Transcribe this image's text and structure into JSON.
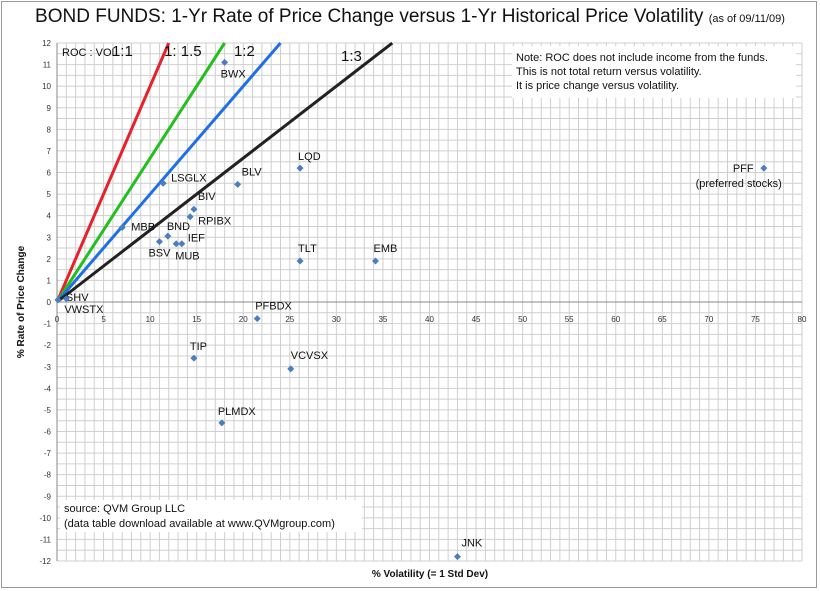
{
  "chart_data": {
    "type": "scatter",
    "title": "BOND FUNDS:  1-Yr Rate of Price Change versus 1-Yr Historical Price Volatility",
    "subtitle": "(as of 09/11/09)",
    "xlabel": "% Volatility (= 1 Std Dev)",
    "ylabel": "% Rate of Price Change",
    "xlim": [
      0,
      80
    ],
    "ylim": [
      -12,
      12
    ],
    "xticks": [
      0,
      5,
      10,
      15,
      20,
      25,
      30,
      35,
      40,
      45,
      50,
      55,
      60,
      65,
      70,
      75,
      80
    ],
    "yticks": [
      12,
      11,
      10,
      9,
      8,
      7,
      6,
      5,
      4,
      3,
      2,
      1,
      0,
      -1,
      -2,
      -3,
      -4,
      -5,
      -6,
      -7,
      -8,
      -9,
      -10,
      -11,
      -12
    ],
    "grid": true,
    "marker_color": "#4a7ebf",
    "points": [
      {
        "label": "BWX",
        "x": 18.0,
        "y": 11.1
      },
      {
        "label": "LQD",
        "x": 26.1,
        "y": 6.2
      },
      {
        "label": "BLV",
        "x": 19.4,
        "y": 5.45
      },
      {
        "label": "LSGLX",
        "x": 11.4,
        "y": 5.5
      },
      {
        "label": "BIV",
        "x": 14.7,
        "y": 4.3
      },
      {
        "label": "RPIBX",
        "x": 14.3,
        "y": 3.95
      },
      {
        "label": "MBB",
        "x": 7.0,
        "y": 3.45
      },
      {
        "label": "BND",
        "x": 11.9,
        "y": 3.05
      },
      {
        "label": "BSV",
        "x": 11.0,
        "y": 2.8
      },
      {
        "label": "IEF",
        "x": 13.4,
        "y": 2.7
      },
      {
        "label": "MUB",
        "x": 12.8,
        "y": 2.7
      },
      {
        "label": "TLT",
        "x": 26.1,
        "y": 1.9
      },
      {
        "label": "EMB",
        "x": 34.2,
        "y": 1.9
      },
      {
        "label": "SHV",
        "x": 0.1,
        "y": 0.1
      },
      {
        "label": "VWSTX",
        "x": 1.0,
        "y": 0.15
      },
      {
        "label": "PFF",
        "sublabel": "(preferred stocks)",
        "x": 75.9,
        "y": 6.2
      },
      {
        "label": "PFBDX",
        "x": 21.5,
        "y": -0.77
      },
      {
        "label": "TIP",
        "x": 14.7,
        "y": -2.6
      },
      {
        "label": "VCVSX",
        "x": 25.1,
        "y": -3.1
      },
      {
        "label": "PLMDX",
        "x": 17.7,
        "y": -5.6
      },
      {
        "label": "JNK",
        "x": 43.0,
        "y": -11.8
      }
    ],
    "reference_lines_label": "ROC : VOL",
    "reference_lines": [
      {
        "label": "1:1",
        "slope": 1,
        "color": "#e8202a"
      },
      {
        "label": "1: 1.5",
        "slope": 0.6667,
        "color": "#22c01e"
      },
      {
        "label": "1:2",
        "slope": 0.5,
        "color": "#1f6fe8"
      },
      {
        "label": "1:3",
        "slope": 0.3333,
        "color": "#222222"
      }
    ],
    "annotations": {
      "note": [
        "Note:  ROC does not include income from the funds.",
        "This is not total return versus volatility.",
        "It is price change versus volatility."
      ],
      "source": [
        "source:  QVM Group LLC",
        "(data table download available at www.QVMgroup.com)"
      ]
    }
  }
}
